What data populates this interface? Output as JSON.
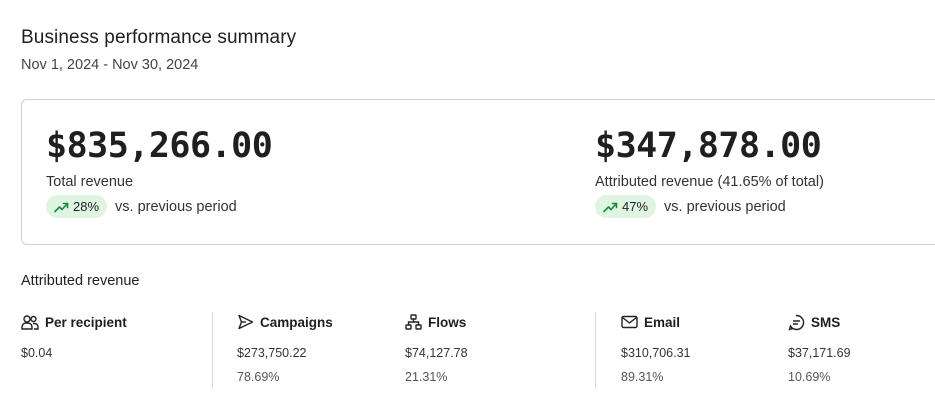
{
  "header": {
    "title": "Business performance summary",
    "date_range": "Nov 1, 2024 - Nov 30, 2024"
  },
  "summary": {
    "total": {
      "value": "$835,266.00",
      "label": "Total revenue",
      "change": "28%",
      "vs": "vs. previous period"
    },
    "attributed": {
      "value": "$347,878.00",
      "label": "Attributed revenue (41.65% of total)",
      "change": "47%",
      "vs": "vs. previous period"
    },
    "trend_icon": "trend-up-icon",
    "positive_color": "#1a8a3a",
    "pill_bg": "#dff5e2"
  },
  "attributed_section": {
    "title": "Attributed revenue",
    "stats": [
      {
        "label": "Per recipient",
        "icon": "people-icon",
        "value": "$0.04",
        "percent": ""
      },
      {
        "label": "Campaigns",
        "icon": "send-icon",
        "value": "$273,750.22",
        "percent": "78.69%"
      },
      {
        "label": "Flows",
        "icon": "flow-icon",
        "value": "$74,127.78",
        "percent": "21.31%"
      },
      {
        "label": "Email",
        "icon": "mail-icon",
        "value": "$310,706.31",
        "percent": "89.31%"
      },
      {
        "label": "SMS",
        "icon": "sms-icon",
        "value": "$37,171.69",
        "percent": "10.69%"
      }
    ]
  }
}
